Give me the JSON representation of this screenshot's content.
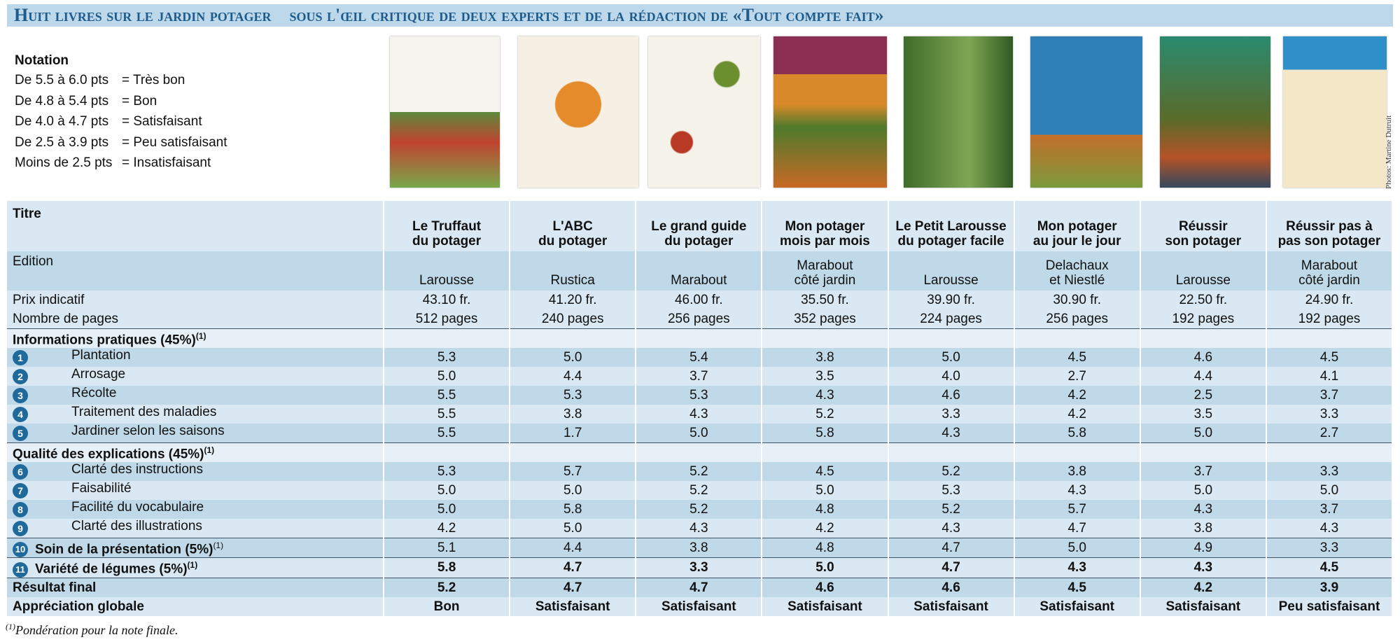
{
  "header": {
    "title": "Huit livres sur le jardin potager",
    "subtitle": "sous l'œil critique de deux experts et de la rédaction de «Tout compte fait»"
  },
  "legend": {
    "title": "Notation",
    "items": [
      {
        "range": "De 5.5 à 6.0 pts",
        "label": "= Très bon"
      },
      {
        "range": "De 4.8 à 5.4 pts",
        "label": "= Bon"
      },
      {
        "range": "De 4.0 à 4.7 pts",
        "label": "= Satisfaisant"
      },
      {
        "range": "De 2.5 à 3.9 pts",
        "label": "= Peu satisfaisant"
      },
      {
        "range": "Moins de 2.5 pts",
        "label": "= Insatisfaisant"
      }
    ]
  },
  "photo_credit": "Photos: Martine Dutruit",
  "table": {
    "row_labels": {
      "title": "Titre",
      "edition": "Edition",
      "price": "Prix indicatif",
      "pages": "Nombre de pages"
    },
    "books": [
      {
        "title": "Le Truffaut\ndu potager",
        "edition": "Larousse",
        "price": "43.10 fr.",
        "pages": "512 pages"
      },
      {
        "title": "L'ABC\ndu potager",
        "edition": "Rustica",
        "price": "41.20 fr.",
        "pages": "240 pages"
      },
      {
        "title": "Le grand guide\ndu potager",
        "edition": "Marabout",
        "price": "46.00 fr.",
        "pages": "256 pages"
      },
      {
        "title": "Mon potager\nmois par mois",
        "edition": "Marabout\ncôté jardin",
        "price": "35.50 fr.",
        "pages": "352 pages"
      },
      {
        "title": "Le Petit Larousse\ndu potager facile",
        "edition": "Larousse",
        "price": "39.90 fr.",
        "pages": "224 pages"
      },
      {
        "title": "Mon potager\nau jour le jour",
        "edition": "Delachaux\net Niestlé",
        "price": "30.90 fr.",
        "pages": "256 pages"
      },
      {
        "title": "Réussir\nson potager",
        "edition": "Larousse",
        "price": "22.50 fr.",
        "pages": "192 pages"
      },
      {
        "title": "Réussir pas à\npas son potager",
        "edition": "Marabout\ncôté jardin",
        "price": "24.90 fr.",
        "pages": "192 pages"
      }
    ],
    "sections": [
      {
        "label": "Informations pratiques (45%)",
        "note": "(1)",
        "criteria": [
          {
            "number": "1",
            "label": "Plantation",
            "scores": [
              "5.3",
              "5.0",
              "5.4",
              "3.8",
              "5.0",
              "4.5",
              "4.6",
              "4.5"
            ]
          },
          {
            "number": "2",
            "label": "Arrosage",
            "scores": [
              "5.0",
              "4.4",
              "3.7",
              "3.5",
              "4.0",
              "2.7",
              "4.4",
              "4.1"
            ]
          },
          {
            "number": "3",
            "label": "Récolte",
            "scores": [
              "5.5",
              "5.3",
              "5.3",
              "4.3",
              "4.6",
              "4.2",
              "2.5",
              "3.7"
            ]
          },
          {
            "number": "4",
            "label": "Traitement des maladies",
            "scores": [
              "5.5",
              "3.8",
              "4.3",
              "5.2",
              "3.3",
              "4.2",
              "3.5",
              "3.3"
            ]
          },
          {
            "number": "5",
            "label": "Jardiner selon les saisons",
            "scores": [
              "5.5",
              "1.7",
              "5.0",
              "5.8",
              "4.3",
              "5.8",
              "5.0",
              "2.7"
            ]
          }
        ]
      },
      {
        "label": "Qualité des explications (45%)",
        "note": "(1)",
        "criteria": [
          {
            "number": "6",
            "label": "Clarté des instructions",
            "scores": [
              "5.3",
              "5.7",
              "5.2",
              "4.5",
              "5.2",
              "3.8",
              "3.7",
              "3.3"
            ]
          },
          {
            "number": "7",
            "label": "Faisabilité",
            "scores": [
              "5.0",
              "5.0",
              "5.2",
              "5.0",
              "5.3",
              "4.3",
              "5.0",
              "5.0"
            ]
          },
          {
            "number": "8",
            "label": "Facilité du vocabulaire",
            "scores": [
              "5.0",
              "5.8",
              "5.2",
              "4.8",
              "5.2",
              "5.7",
              "4.3",
              "3.7"
            ]
          },
          {
            "number": "9",
            "label": "Clarté des illustrations",
            "scores": [
              "4.2",
              "5.0",
              "4.3",
              "4.2",
              "4.3",
              "4.7",
              "3.8",
              "4.3"
            ]
          }
        ]
      }
    ],
    "weighted_criteria": [
      {
        "number": "10",
        "label": "Soin de la présentation (5%)",
        "note": "(1)",
        "scores": [
          "5.1",
          "4.4",
          "3.8",
          "4.8",
          "4.7",
          "5.0",
          "4.9",
          "3.3"
        ]
      },
      {
        "number": "11",
        "label": "Variété de légumes (5%)",
        "note": "(1)",
        "scores": [
          "5.8",
          "4.7",
          "3.3",
          "5.0",
          "4.7",
          "4.3",
          "4.3",
          "4.5"
        ]
      }
    ],
    "final": {
      "label": "Résultat final",
      "scores": [
        "5.2",
        "4.7",
        "4.7",
        "4.6",
        "4.6",
        "4.5",
        "4.2",
        "3.9"
      ]
    },
    "appreciation": {
      "label": "Appréciation globale",
      "values": [
        "Bon",
        "Satisfaisant",
        "Satisfaisant",
        "Satisfaisant",
        "Satisfaisant",
        "Satisfaisant",
        "Satisfaisant",
        "Peu satisfaisant"
      ]
    }
  },
  "footnote": {
    "note": "(1)",
    "text": "Pondération pour la note finale."
  }
}
